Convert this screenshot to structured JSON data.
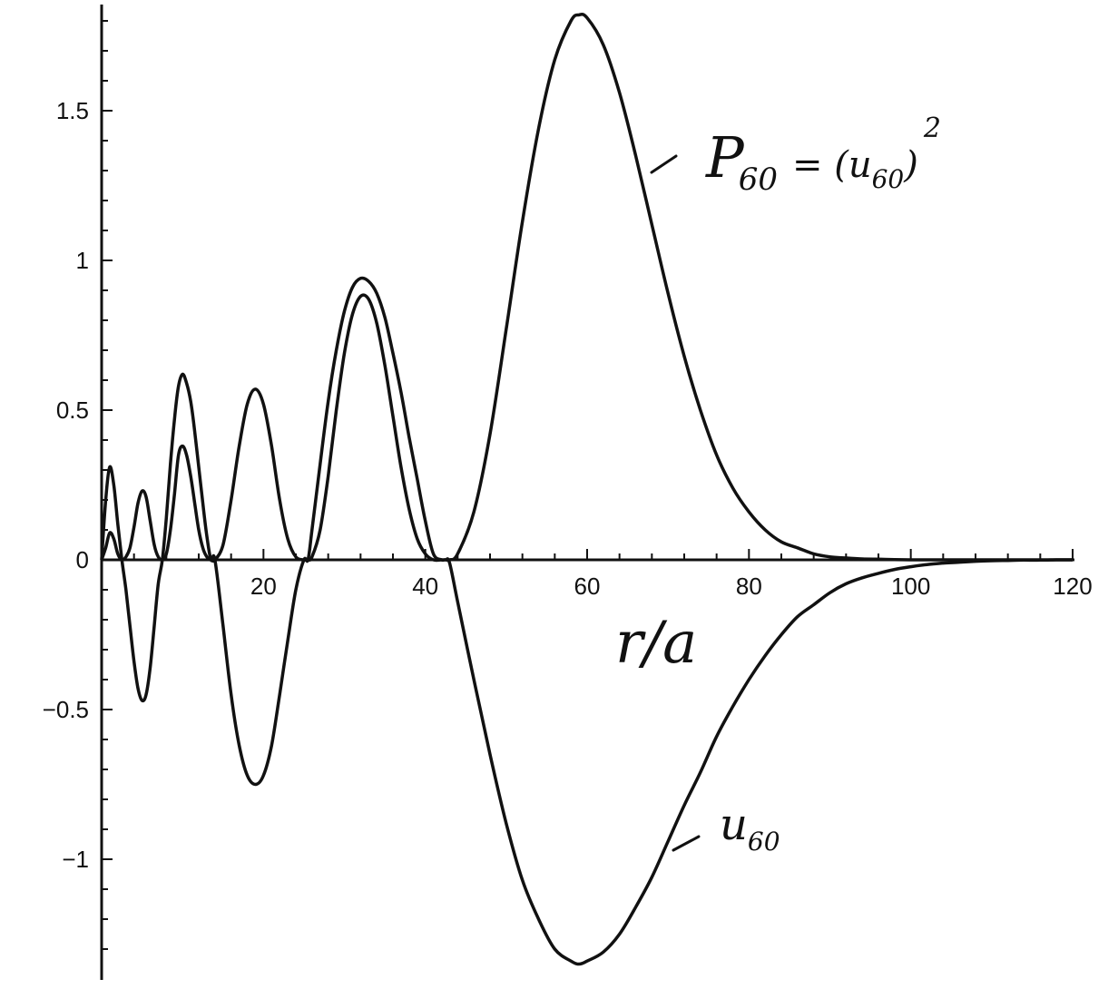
{
  "chart_data": {
    "type": "line",
    "title": "",
    "xlabel": "r/a",
    "ylabel": "",
    "xlim": [
      0,
      120
    ],
    "ylim": [
      -1.37,
      1.85
    ],
    "grid": false,
    "x_ticks": [
      20,
      40,
      60,
      80,
      100,
      120
    ],
    "x_tick_labels": [
      "20",
      "40",
      "60",
      "80",
      "100",
      "120"
    ],
    "y_ticks": [
      -1,
      -0.5,
      0,
      0.5,
      1,
      1.5
    ],
    "y_tick_labels": [
      "−1",
      "−0.5",
      "0",
      "0.5",
      "1",
      "1.5"
    ],
    "series": [
      {
        "name": "P60 = (u60)^2",
        "x": [
          0,
          0.5,
          1,
          1.5,
          2,
          2.5,
          3,
          3.5,
          4,
          4.5,
          5,
          5.5,
          6,
          6.5,
          7,
          7.5,
          8,
          8.5,
          9,
          9.5,
          10,
          10.5,
          11,
          11.5,
          12,
          12.5,
          13,
          13.5,
          14,
          15,
          16,
          17,
          18,
          19,
          20,
          21,
          22,
          23,
          24,
          25,
          25.5,
          26,
          27,
          28,
          29,
          30,
          31,
          32,
          33,
          34,
          35,
          36,
          37,
          38,
          39,
          40,
          41,
          42,
          42.5,
          43,
          44,
          46,
          48,
          50,
          52,
          54,
          56,
          58,
          59,
          60,
          62,
          64,
          66,
          68,
          70,
          72,
          74,
          76,
          78,
          80,
          82,
          84,
          86,
          88,
          90,
          92,
          94,
          96,
          98,
          100,
          102,
          104,
          106,
          108,
          110,
          112,
          114,
          116,
          118,
          120
        ],
        "y": [
          0,
          0.04,
          0.09,
          0.07,
          0.02,
          0,
          0.01,
          0.04,
          0.11,
          0.19,
          0.23,
          0.21,
          0.13,
          0.05,
          0.01,
          0,
          0.02,
          0.1,
          0.22,
          0.35,
          0.38,
          0.35,
          0.28,
          0.19,
          0.1,
          0.04,
          0.01,
          0,
          0,
          0.05,
          0.2,
          0.38,
          0.52,
          0.57,
          0.52,
          0.38,
          0.2,
          0.07,
          0.01,
          0,
          0,
          0.01,
          0.1,
          0.28,
          0.5,
          0.69,
          0.82,
          0.88,
          0.87,
          0.79,
          0.65,
          0.48,
          0.31,
          0.17,
          0.07,
          0.02,
          0,
          0,
          0,
          0,
          0.02,
          0.16,
          0.42,
          0.77,
          1.13,
          1.44,
          1.67,
          1.8,
          1.82,
          1.81,
          1.72,
          1.56,
          1.35,
          1.12,
          0.89,
          0.68,
          0.5,
          0.35,
          0.24,
          0.16,
          0.1,
          0.06,
          0.04,
          0.02,
          0.01,
          0.006,
          0.003,
          0.002,
          0.001,
          0,
          0,
          0,
          0,
          0,
          0,
          0,
          0,
          0,
          0,
          0
        ]
      },
      {
        "name": "u60",
        "x": [
          0,
          0.5,
          1,
          1.5,
          2,
          2.5,
          3,
          3.5,
          4,
          4.5,
          5,
          5.5,
          6,
          6.5,
          7,
          7.5,
          8,
          8.5,
          9,
          9.5,
          10,
          10.5,
          11,
          11.5,
          12,
          12.5,
          13,
          13.5,
          14,
          15,
          16,
          17,
          18,
          19,
          20,
          21,
          22,
          23,
          24,
          25,
          25.5,
          26,
          27,
          28,
          29,
          30,
          31,
          32,
          33,
          34,
          35,
          36,
          37,
          38,
          39,
          40,
          41,
          42,
          42.5,
          43,
          44,
          46,
          48,
          50,
          52,
          54,
          56,
          58,
          59,
          60,
          62,
          64,
          66,
          68,
          70,
          72,
          74,
          76,
          78,
          80,
          82,
          84,
          86,
          88,
          90,
          92,
          94,
          96,
          98,
          100,
          102,
          104,
          106,
          108,
          110,
          112,
          114,
          116,
          118,
          120
        ],
        "y": [
          0,
          0.2,
          0.31,
          0.25,
          0.12,
          0,
          -0.1,
          -0.22,
          -0.34,
          -0.43,
          -0.47,
          -0.45,
          -0.36,
          -0.22,
          -0.08,
          0,
          0.14,
          0.32,
          0.47,
          0.58,
          0.62,
          0.59,
          0.53,
          0.43,
          0.31,
          0.19,
          0.08,
          0,
          0,
          -0.22,
          -0.45,
          -0.62,
          -0.72,
          -0.75,
          -0.72,
          -0.62,
          -0.45,
          -0.27,
          -0.1,
          0,
          0,
          0.1,
          0.32,
          0.53,
          0.7,
          0.83,
          0.91,
          0.94,
          0.93,
          0.89,
          0.81,
          0.69,
          0.56,
          0.41,
          0.27,
          0.13,
          0.02,
          0,
          0,
          -0.01,
          -0.14,
          -0.4,
          -0.65,
          -0.88,
          -1.07,
          -1.2,
          -1.3,
          -1.34,
          -1.35,
          -1.34,
          -1.31,
          -1.25,
          -1.16,
          -1.06,
          -0.94,
          -0.82,
          -0.71,
          -0.59,
          -0.49,
          -0.4,
          -0.32,
          -0.25,
          -0.19,
          -0.15,
          -0.11,
          -0.08,
          -0.06,
          -0.045,
          -0.032,
          -0.023,
          -0.016,
          -0.011,
          -0.008,
          -0.005,
          -0.003,
          -0.002,
          -0.001,
          -0.001,
          0,
          0
        ]
      }
    ],
    "annotations": [
      {
        "label": "P60 = (u60)^2",
        "text_main": "P",
        "text_sub": "60",
        "text_eq": "= (u",
        "text_sub2": "60",
        "text_close": ")",
        "text_sup": "2",
        "x": 66,
        "y": 1.35
      },
      {
        "label": "u60",
        "text_main": "u",
        "text_sub": "60",
        "x": 70,
        "y": -1.0
      }
    ]
  }
}
